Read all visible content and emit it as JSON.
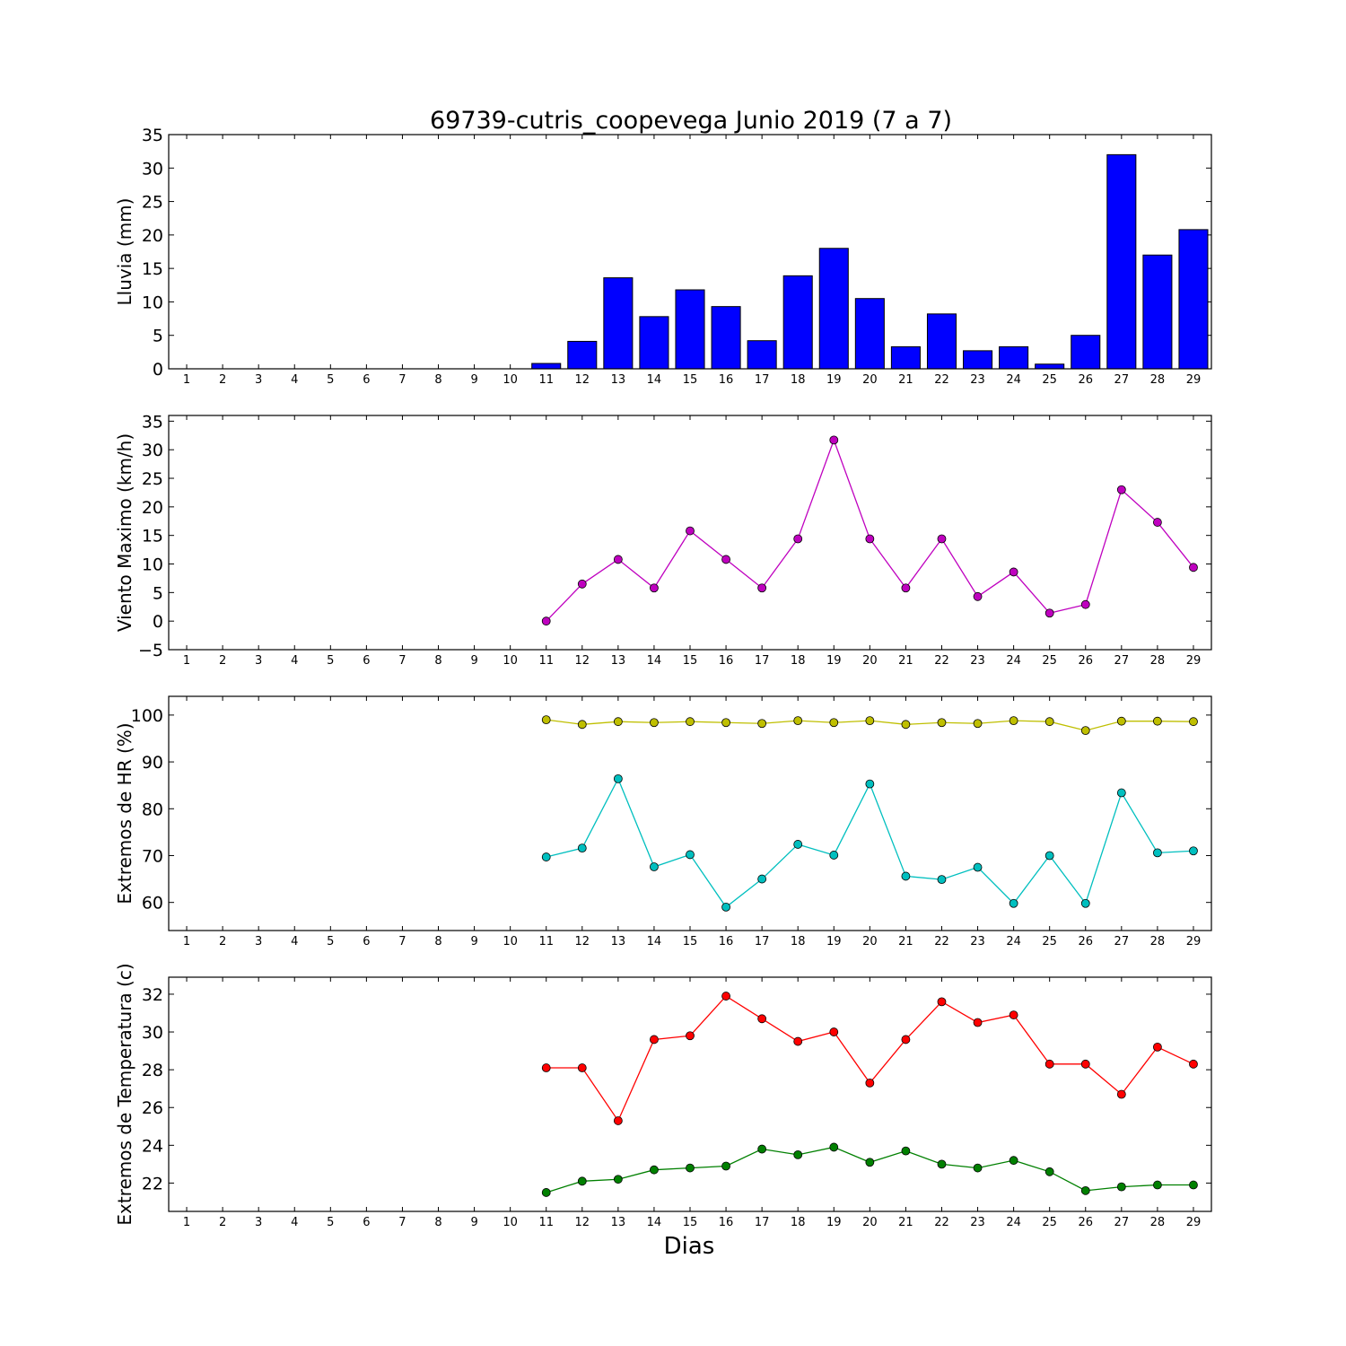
{
  "chart_data": {
    "title": "69739-cutris_coopevega Junio 2019  (7 a 7)",
    "xlabel": "Dias",
    "days": [
      "1",
      "2",
      "3",
      "4",
      "5",
      "6",
      "7",
      "8",
      "9",
      "10",
      "11",
      "12",
      "13",
      "14",
      "15",
      "16",
      "17",
      "18",
      "19",
      "20",
      "21",
      "22",
      "23",
      "24",
      "25",
      "26",
      "27",
      "28",
      "29"
    ],
    "panels": [
      {
        "type": "bar",
        "ylabel": "Lluvia (mm)",
        "ylim": [
          0,
          35
        ],
        "yticks": [
          0,
          5,
          10,
          15,
          20,
          25,
          30,
          35
        ],
        "series": [
          {
            "color": "#0000ff",
            "x": [
              11,
              12,
              13,
              14,
              15,
              16,
              17,
              18,
              19,
              20,
              21,
              22,
              23,
              24,
              25,
              26,
              27,
              28,
              29
            ],
            "values": [
              0.8,
              4.1,
              13.6,
              7.8,
              11.8,
              9.3,
              4.2,
              13.9,
              18.0,
              10.5,
              3.3,
              8.2,
              2.7,
              3.3,
              0.7,
              5.0,
              32.0,
              17.0,
              20.8
            ]
          }
        ]
      },
      {
        "type": "line",
        "ylabel": "Viento Maximo (km/h)",
        "ylim": [
          -5,
          36
        ],
        "yticks": [
          -5,
          0,
          5,
          10,
          15,
          20,
          25,
          30,
          35
        ],
        "series": [
          {
            "color": "#bf00bf",
            "x": [
              11,
              12,
              13,
              14,
              15,
              16,
              17,
              18,
              19,
              20,
              21,
              22,
              23,
              24,
              25,
              26,
              27,
              28,
              29
            ],
            "values": [
              0.0,
              6.5,
              10.8,
              5.8,
              15.8,
              10.8,
              5.8,
              14.4,
              31.7,
              14.4,
              5.8,
              14.4,
              4.3,
              8.6,
              1.4,
              2.9,
              23.0,
              17.3,
              9.4
            ]
          }
        ]
      },
      {
        "type": "line",
        "ylabel": "Extremos de HR (%)",
        "ylim": [
          54,
          104
        ],
        "yticks": [
          60,
          70,
          80,
          90,
          100
        ],
        "series": [
          {
            "color": "#bfbf00",
            "x": [
              11,
              12,
              13,
              14,
              15,
              16,
              17,
              18,
              19,
              20,
              21,
              22,
              23,
              24,
              25,
              26,
              27,
              28,
              29
            ],
            "values": [
              99.0,
              98.0,
              98.6,
              98.4,
              98.6,
              98.4,
              98.2,
              98.8,
              98.4,
              98.8,
              98.0,
              98.4,
              98.2,
              98.8,
              98.6,
              96.7,
              98.7,
              98.7,
              98.6
            ]
          },
          {
            "color": "#00bfbf",
            "x": [
              11,
              12,
              13,
              14,
              15,
              16,
              17,
              18,
              19,
              20,
              21,
              22,
              23,
              24,
              25,
              26,
              27,
              28,
              29
            ],
            "values": [
              69.7,
              71.6,
              86.4,
              67.6,
              70.2,
              59.0,
              65.0,
              72.4,
              70.1,
              85.3,
              65.6,
              64.9,
              67.5,
              59.8,
              70.0,
              59.8,
              83.4,
              70.6,
              71.0
            ]
          }
        ]
      },
      {
        "type": "line",
        "ylabel": "Extremos de Temperatura (c)",
        "ylim": [
          20.5,
          32.9
        ],
        "yticks": [
          22,
          24,
          26,
          28,
          30,
          32
        ],
        "series": [
          {
            "color": "#ff0000",
            "x": [
              11,
              12,
              13,
              14,
              15,
              16,
              17,
              18,
              19,
              20,
              21,
              22,
              23,
              24,
              25,
              26,
              27,
              28,
              29
            ],
            "values": [
              28.1,
              28.1,
              25.3,
              29.6,
              29.8,
              31.9,
              30.7,
              29.5,
              30.0,
              27.3,
              29.6,
              31.6,
              30.5,
              30.9,
              28.3,
              28.3,
              26.7,
              29.2,
              28.3
            ]
          },
          {
            "color": "#008000",
            "x": [
              11,
              12,
              13,
              14,
              15,
              16,
              17,
              18,
              19,
              20,
              21,
              22,
              23,
              24,
              25,
              26,
              27,
              28,
              29
            ],
            "values": [
              21.5,
              22.1,
              22.2,
              22.7,
              22.8,
              22.9,
              23.8,
              23.5,
              23.9,
              23.1,
              23.7,
              23.0,
              22.8,
              23.2,
              22.6,
              21.6,
              21.8,
              21.9,
              21.9
            ]
          }
        ]
      }
    ]
  }
}
